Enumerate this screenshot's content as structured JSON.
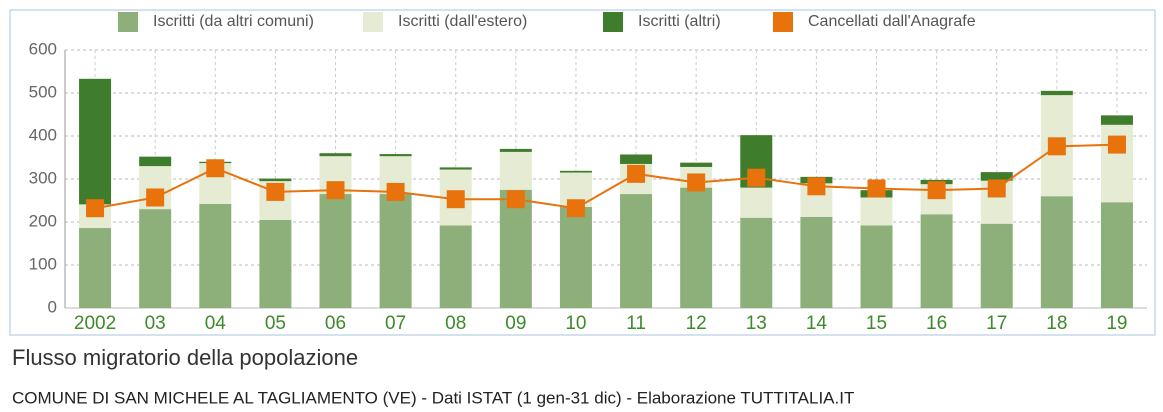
{
  "chart_data": {
    "type": "stacked_bar_line",
    "title": "Flusso migratorio della popolazione",
    "subtitle": "COMUNE DI SAN MICHELE AL TAGLIAMENTO (VE) - Dati ISTAT (1 gen-31 dic) - Elaborazione TUTTITALIA.IT",
    "categories": [
      "2002",
      "03",
      "04",
      "05",
      "06",
      "07",
      "08",
      "09",
      "10",
      "11",
      "12",
      "13",
      "14",
      "15",
      "16",
      "17",
      "18",
      "19"
    ],
    "series": [
      {
        "name": "Iscritti (da altri comuni)",
        "color": "#8db07a",
        "values": [
          186,
          230,
          242,
          205,
          265,
          265,
          192,
          275,
          235,
          265,
          280,
          210,
          212,
          192,
          218,
          196,
          260,
          246
        ]
      },
      {
        "name": "Iscritti (dall'estero)",
        "color": "#e6ecd3",
        "values": [
          55,
          100,
          95,
          90,
          88,
          88,
          130,
          88,
          80,
          70,
          48,
          70,
          78,
          65,
          70,
          100,
          235,
          180
        ]
      },
      {
        "name": "Iscritti (altri)",
        "color": "#3f7d2c",
        "values": [
          292,
          22,
          3,
          6,
          7,
          5,
          5,
          7,
          4,
          22,
          10,
          122,
          15,
          17,
          10,
          20,
          10,
          22
        ]
      },
      {
        "name": "Cancellati dall'Anagrafe",
        "color": "#e8720c",
        "type": "line",
        "values": [
          232,
          257,
          325,
          270,
          274,
          270,
          253,
          253,
          232,
          312,
          292,
          303,
          283,
          278,
          274,
          278,
          376,
          380
        ]
      }
    ],
    "ylim": [
      0,
      600
    ],
    "yticks": [
      0,
      100,
      200,
      300,
      400,
      500,
      600
    ],
    "grid": true
  }
}
